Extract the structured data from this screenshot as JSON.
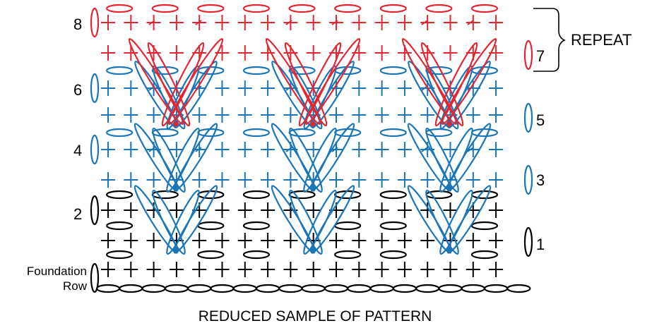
{
  "colors": {
    "black": "#000000",
    "blue": "#1a76b8",
    "red": "#e32632"
  },
  "labels": {
    "row8": "8",
    "row7": "7",
    "row6": "6",
    "row5": "5",
    "row4": "4",
    "row3": "3",
    "row2": "2",
    "row1": "1",
    "foundation_line1": "Foundation",
    "foundation_line2": "Row",
    "repeat": "REPEAT",
    "caption": "REDUCED SAMPLE OF PATTERN"
  },
  "rows": [
    {
      "id": "foundation",
      "color": "black",
      "stitch": "chain"
    },
    {
      "id": "row1",
      "color": "black",
      "stitch": "single-crochet"
    },
    {
      "id": "row2",
      "color": "black",
      "stitch": "single-crochet"
    },
    {
      "id": "row3",
      "color": "blue",
      "stitch": "cluster-v"
    },
    {
      "id": "row4",
      "color": "blue",
      "stitch": "single-crochet"
    },
    {
      "id": "row5",
      "color": "blue",
      "stitch": "cluster-v"
    },
    {
      "id": "row6",
      "color": "blue",
      "stitch": "single-crochet"
    },
    {
      "id": "row7",
      "color": "red",
      "stitch": "cluster-v"
    },
    {
      "id": "row8",
      "color": "red",
      "stitch": "single-crochet"
    }
  ]
}
